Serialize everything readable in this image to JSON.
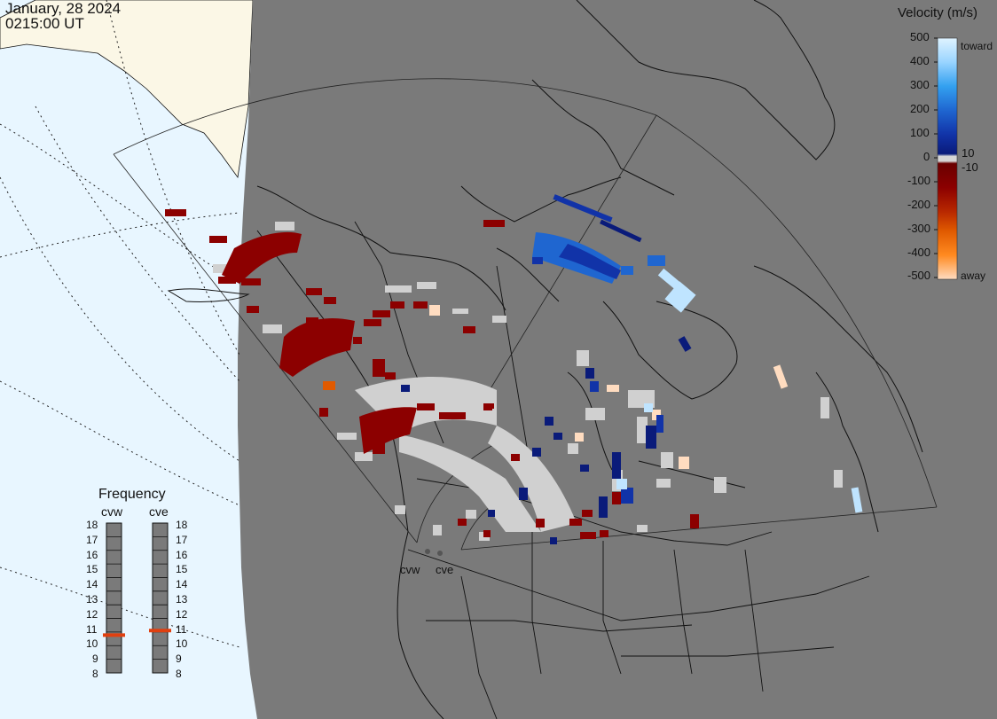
{
  "header": {
    "date": "January, 28 2024",
    "time": "0215:00 UT"
  },
  "colorbar": {
    "title": "Velocity (m/s)",
    "ticks": [
      "500",
      "400",
      "300",
      "200",
      "100",
      "0",
      "-100",
      "-200",
      "-300",
      "-400",
      "-500"
    ],
    "inner_labels": [
      "10",
      "-10"
    ],
    "end_labels": [
      "toward",
      "away"
    ],
    "colors": {
      "toward_500": "#dff3ff",
      "toward_300": "#33a0f0",
      "toward_100": "#1133a8",
      "zero": "#d6d6d6",
      "away_100": "#8c0000",
      "away_300": "#e05a00",
      "away_500": "#ffdcc0"
    }
  },
  "frequency": {
    "title": "Frequency",
    "radars": [
      "cvw",
      "cve"
    ],
    "scale": [
      "18",
      "17",
      "16",
      "15",
      "14",
      "13",
      "12",
      "11",
      "10",
      "9",
      "8"
    ],
    "cvw_mhz": 10.6,
    "cve_mhz": 10.9,
    "marker_color": "#e04010"
  },
  "radar_sites": {
    "west": "cvw",
    "east": "cve"
  },
  "map_colors": {
    "land": "#7a7a7a",
    "ocean": "#e8f6ff",
    "sunlit_land": "#fbf7e6",
    "coast": "#111111",
    "ground_scatter": "#d0d0d0"
  }
}
